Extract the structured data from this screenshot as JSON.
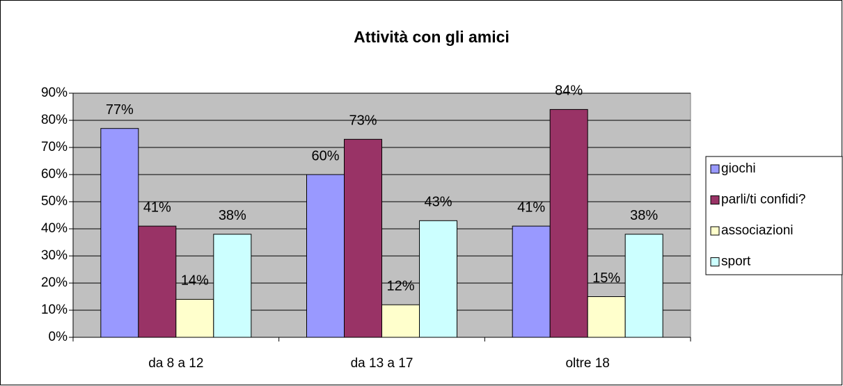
{
  "chart_data": {
    "type": "bar",
    "title": "Attività con gli amici",
    "categories": [
      "da 8 a 12",
      "da 13 a 17",
      "oltre 18"
    ],
    "series": [
      {
        "name": "giochi",
        "color": "#9999ff",
        "values": [
          77,
          60,
          41
        ],
        "value_labels": [
          "77%",
          "60%",
          "41%"
        ]
      },
      {
        "name": "parli/ti confidi?",
        "color": "#993366",
        "values": [
          41,
          73,
          84
        ],
        "value_labels": [
          "41%",
          "73%",
          "84%"
        ]
      },
      {
        "name": "associazioni",
        "color": "#ffffcc",
        "values": [
          14,
          12,
          15
        ],
        "value_labels": [
          "14%",
          "12%",
          "15%"
        ]
      },
      {
        "name": "sport",
        "color": "#ccffff",
        "values": [
          38,
          43,
          38
        ],
        "value_labels": [
          "38%",
          "43%",
          "38%"
        ]
      }
    ],
    "ylim": [
      0,
      90
    ],
    "yticks": [
      {
        "value": 0,
        "label": "0%"
      },
      {
        "value": 10,
        "label": "10%"
      },
      {
        "value": 20,
        "label": "20%"
      },
      {
        "value": 30,
        "label": "30%"
      },
      {
        "value": 40,
        "label": "40%"
      },
      {
        "value": 50,
        "label": "50%"
      },
      {
        "value": 60,
        "label": "60%"
      },
      {
        "value": 70,
        "label": "70%"
      },
      {
        "value": 80,
        "label": "80%"
      },
      {
        "value": 90,
        "label": "90%"
      }
    ],
    "grid": true,
    "legend": "right",
    "plot_background": "#c0c0c0"
  }
}
